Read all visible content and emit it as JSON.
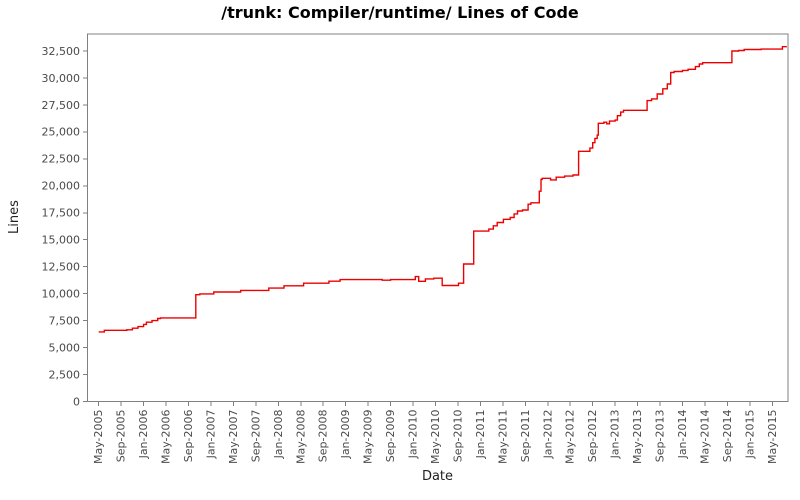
{
  "title": "/trunk: Compiler/runtime/ Lines of Code",
  "chart_data": {
    "type": "line",
    "style": "step-after",
    "title": "/trunk: Compiler/runtime/ Lines of Code",
    "xlabel": "Date",
    "ylabel": "Lines",
    "legend": "none",
    "grid": "off",
    "x_domain_months": [
      -2,
      122.8
    ],
    "ylim": [
      0,
      34080
    ],
    "y_ticks": [
      0,
      2500,
      5000,
      7500,
      10000,
      12500,
      15000,
      17500,
      20000,
      22500,
      25000,
      27500,
      30000,
      32500
    ],
    "x_tick_labels": [
      "May-2005",
      "Sep-2005",
      "Jan-2006",
      "May-2006",
      "Sep-2006",
      "Jan-2007",
      "May-2007",
      "Sep-2007",
      "Jan-2008",
      "May-2008",
      "Sep-2008",
      "Jan-2009",
      "May-2009",
      "Sep-2009",
      "Jan-2010",
      "May-2010",
      "Sep-2010",
      "Jan-2011",
      "May-2011",
      "Sep-2011",
      "Jan-2012",
      "May-2012",
      "Sep-2012",
      "Jan-2013",
      "May-2013",
      "Sep-2013",
      "Jan-2014",
      "May-2014",
      "Sep-2014",
      "Jan-2015",
      "May-2015"
    ],
    "x_tick_step_months": 4,
    "colors": {
      "series": "#ee0000",
      "axis": "#808080",
      "tick_labels": "#4a4a4a",
      "titles": "#222222",
      "background": "#ffffff"
    },
    "points": [
      {
        "m": 0,
        "date": "May-2005",
        "lines": 6450
      },
      {
        "m": 1,
        "date": "Jun-2005",
        "lines": 6600
      },
      {
        "m": 5,
        "date": "Oct-2005",
        "lines": 6650
      },
      {
        "m": 6,
        "date": "Nov-2005",
        "lines": 6800
      },
      {
        "m": 7,
        "date": "Dec-2005",
        "lines": 6950
      },
      {
        "m": 8,
        "date": "Jan-2006",
        "lines": 7150
      },
      {
        "m": 8.5,
        "date": "Jan-2006",
        "lines": 7350
      },
      {
        "m": 9.5,
        "date": "Feb-2006",
        "lines": 7500
      },
      {
        "m": 10.5,
        "date": "Mar-2006",
        "lines": 7700
      },
      {
        "m": 11,
        "date": "Apr-2006",
        "lines": 7750
      },
      {
        "m": 17.3,
        "date": "Oct-2006",
        "lines": 9900
      },
      {
        "m": 18,
        "date": "Nov-2006",
        "lines": 9975
      },
      {
        "m": 20.5,
        "date": "Jan-2007",
        "lines": 10150
      },
      {
        "m": 25.3,
        "date": "Jun-2007",
        "lines": 10300
      },
      {
        "m": 30.3,
        "date": "Nov-2007",
        "lines": 10520
      },
      {
        "m": 33,
        "date": "Feb-2008",
        "lines": 10730
      },
      {
        "m": 36.5,
        "date": "May-2008",
        "lines": 10975
      },
      {
        "m": 41,
        "date": "Oct-2008",
        "lines": 11160
      },
      {
        "m": 43,
        "date": "Dec-2008",
        "lines": 11300
      },
      {
        "m": 50.5,
        "date": "Jul-2009",
        "lines": 11250
      },
      {
        "m": 52,
        "date": "Sep-2009",
        "lines": 11300
      },
      {
        "m": 56.4,
        "date": "Jan-2010",
        "lines": 11580
      },
      {
        "m": 57,
        "date": "Feb-2010",
        "lines": 11150
      },
      {
        "m": 58.2,
        "date": "Mar-2010",
        "lines": 11370
      },
      {
        "m": 59.7,
        "date": "Apr-2010",
        "lines": 11430
      },
      {
        "m": 61.2,
        "date": "Jun-2010",
        "lines": 10760
      },
      {
        "m": 64.1,
        "date": "Sep-2010",
        "lines": 10975
      },
      {
        "m": 65,
        "date": "Oct-2010",
        "lines": 12750
      },
      {
        "m": 66.8,
        "date": "Dec-2010",
        "lines": 15800
      },
      {
        "m": 69.5,
        "date": "Feb-2011",
        "lines": 15990
      },
      {
        "m": 70.3,
        "date": "Mar-2011",
        "lines": 16290
      },
      {
        "m": 71,
        "date": "Apr-2011",
        "lines": 16600
      },
      {
        "m": 72.1,
        "date": "May-2011",
        "lines": 16900
      },
      {
        "m": 73.3,
        "date": "Jun-2011",
        "lines": 17060
      },
      {
        "m": 74,
        "date": "Jul-2011",
        "lines": 17400
      },
      {
        "m": 74.6,
        "date": "Jul-2011",
        "lines": 17670
      },
      {
        "m": 75.5,
        "date": "Aug-2011",
        "lines": 17760
      },
      {
        "m": 76.5,
        "date": "Sep-2011",
        "lines": 18300
      },
      {
        "m": 77,
        "date": "Oct-2011",
        "lines": 18430
      },
      {
        "m": 78.5,
        "date": "Nov-2011",
        "lines": 19500
      },
      {
        "m": 78.8,
        "date": "Nov-2011",
        "lines": 20600
      },
      {
        "m": 79,
        "date": "Dec-2011",
        "lines": 20700
      },
      {
        "m": 80.5,
        "date": "Jan-2012",
        "lines": 20550
      },
      {
        "m": 81.5,
        "date": "Feb-2012",
        "lines": 20800
      },
      {
        "m": 83,
        "date": "Apr-2012",
        "lines": 20900
      },
      {
        "m": 84.5,
        "date": "May-2012",
        "lines": 21000
      },
      {
        "m": 85.5,
        "date": "Jun-2012",
        "lines": 23200
      },
      {
        "m": 87.5,
        "date": "Aug-2012",
        "lines": 23500
      },
      {
        "m": 88,
        "date": "Sep-2012",
        "lines": 24000
      },
      {
        "m": 88.4,
        "date": "Sep-2012",
        "lines": 24400
      },
      {
        "m": 88.8,
        "date": "Sep-2012",
        "lines": 24700
      },
      {
        "m": 89,
        "date": "Oct-2012",
        "lines": 25800
      },
      {
        "m": 90,
        "date": "Nov-2012",
        "lines": 25900
      },
      {
        "m": 90.5,
        "date": "Nov-2012",
        "lines": 25750
      },
      {
        "m": 91,
        "date": "Dec-2012",
        "lines": 26000
      },
      {
        "m": 92,
        "date": "Jan-2013",
        "lines": 26100
      },
      {
        "m": 92.4,
        "date": "Jan-2013",
        "lines": 26500
      },
      {
        "m": 93,
        "date": "Feb-2013",
        "lines": 26840
      },
      {
        "m": 93.5,
        "date": "Feb-2013",
        "lines": 27000
      },
      {
        "m": 97.7,
        "date": "Jul-2013",
        "lines": 27900
      },
      {
        "m": 98.5,
        "date": "Jul-2013",
        "lines": 28060
      },
      {
        "m": 99.5,
        "date": "Aug-2013",
        "lines": 28520
      },
      {
        "m": 100.5,
        "date": "Sep-2013",
        "lines": 29000
      },
      {
        "m": 101.3,
        "date": "Oct-2013",
        "lines": 29440
      },
      {
        "m": 101.9,
        "date": "Nov-2013",
        "lines": 30510
      },
      {
        "m": 102.5,
        "date": "Nov-2013",
        "lines": 30600
      },
      {
        "m": 104,
        "date": "Jan-2014",
        "lines": 30700
      },
      {
        "m": 105,
        "date": "Feb-2014",
        "lines": 30810
      },
      {
        "m": 106.3,
        "date": "Mar-2014",
        "lines": 31060
      },
      {
        "m": 107,
        "date": "Apr-2014",
        "lines": 31300
      },
      {
        "m": 107.6,
        "date": "Apr-2014",
        "lines": 31420
      },
      {
        "m": 112.8,
        "date": "Oct-2014",
        "lines": 32500
      },
      {
        "m": 114,
        "date": "Nov-2014",
        "lines": 32550
      },
      {
        "m": 115,
        "date": "Dec-2014",
        "lines": 32640
      },
      {
        "m": 118,
        "date": "Mar-2015",
        "lines": 32680
      },
      {
        "m": 121.8,
        "date": "Jun-2015",
        "lines": 32900
      },
      {
        "m": 122.6,
        "date": "Jul-2015",
        "lines": 32900
      }
    ]
  }
}
